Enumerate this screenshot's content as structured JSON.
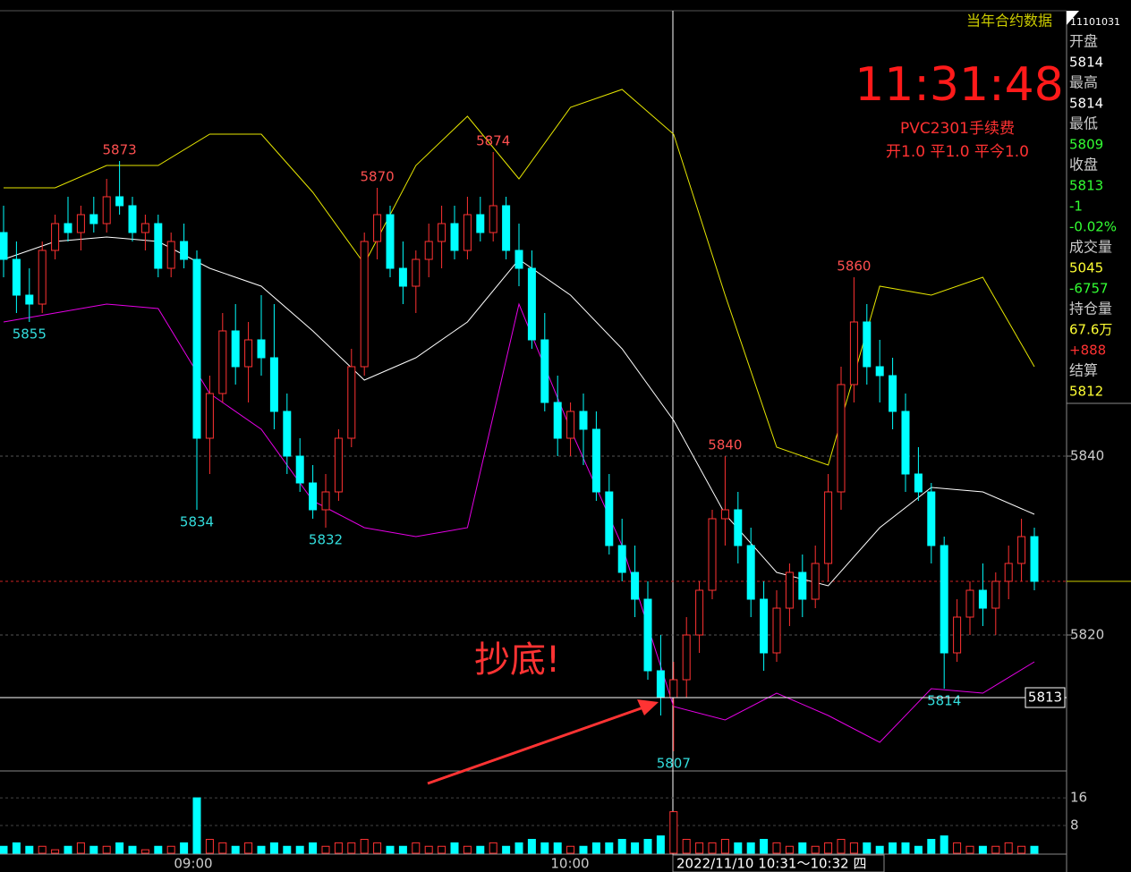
{
  "chart_data": {
    "type": "candlestick",
    "header": "当年合约数据",
    "clock": "11:31:48",
    "contract": "PVC2301手续费",
    "fees": "开1.0 平1.0 平今1.0",
    "annotation": "抄底!",
    "crosshair_time": "2022/11/10 10:31～10:32 四",
    "crosshair_value": 5813,
    "ref_line": 5826,
    "x_labels": [
      "09:00",
      "10:00"
    ],
    "up_color": "#ff3232",
    "down_color": "#00ffff",
    "ylim": [
      5804.8,
      5889.8
    ],
    "yticks": [
      5820,
      5840
    ],
    "volume_ylim": [
      0,
      23
    ],
    "volume_yticks": [
      8,
      16
    ],
    "ohlc": [
      [
        5865,
        5868,
        5860,
        5862
      ],
      [
        5862,
        5864,
        5856,
        5858
      ],
      [
        5858,
        5861,
        5855,
        5857
      ],
      [
        5857,
        5864,
        5856,
        5863
      ],
      [
        5863,
        5867,
        5862,
        5866
      ],
      [
        5866,
        5869,
        5864,
        5865
      ],
      [
        5865,
        5868,
        5863,
        5867
      ],
      [
        5867,
        5869,
        5865,
        5866
      ],
      [
        5866,
        5871,
        5865,
        5869
      ],
      [
        5869,
        5873,
        5867,
        5868
      ],
      [
        5868,
        5869,
        5864,
        5865
      ],
      [
        5865,
        5867,
        5863,
        5866
      ],
      [
        5866,
        5867,
        5860,
        5861
      ],
      [
        5861,
        5865,
        5860,
        5864
      ],
      [
        5864,
        5866,
        5861,
        5862
      ],
      [
        5862,
        5863,
        5834,
        5842
      ],
      [
        5842,
        5849,
        5838,
        5847
      ],
      [
        5847,
        5856,
        5846,
        5854
      ],
      [
        5854,
        5857,
        5848,
        5850
      ],
      [
        5850,
        5855,
        5846,
        5853
      ],
      [
        5853,
        5858,
        5849,
        5851
      ],
      [
        5851,
        5857,
        5843,
        5845
      ],
      [
        5845,
        5847,
        5838,
        5840
      ],
      [
        5840,
        5842,
        5836,
        5837
      ],
      [
        5837,
        5839,
        5833,
        5834
      ],
      [
        5834,
        5838,
        5832,
        5836
      ],
      [
        5836,
        5843,
        5835,
        5842
      ],
      [
        5842,
        5852,
        5841,
        5850
      ],
      [
        5850,
        5865,
        5849,
        5864
      ],
      [
        5864,
        5870,
        5862,
        5867
      ],
      [
        5867,
        5868,
        5860,
        5861
      ],
      [
        5861,
        5864,
        5857,
        5859
      ],
      [
        5859,
        5863,
        5856,
        5862
      ],
      [
        5862,
        5866,
        5860,
        5864
      ],
      [
        5864,
        5868,
        5861,
        5866
      ],
      [
        5866,
        5868,
        5862,
        5863
      ],
      [
        5863,
        5869,
        5862,
        5867
      ],
      [
        5867,
        5869,
        5864,
        5865
      ],
      [
        5865,
        5874,
        5864,
        5868
      ],
      [
        5868,
        5869,
        5862,
        5863
      ],
      [
        5863,
        5866,
        5859,
        5861
      ],
      [
        5861,
        5863,
        5852,
        5853
      ],
      [
        5853,
        5856,
        5845,
        5846
      ],
      [
        5846,
        5849,
        5840,
        5842
      ],
      [
        5842,
        5846,
        5840,
        5845
      ],
      [
        5845,
        5847,
        5839,
        5843
      ],
      [
        5843,
        5845,
        5835,
        5836
      ],
      [
        5836,
        5838,
        5829,
        5830
      ],
      [
        5830,
        5833,
        5826,
        5827
      ],
      [
        5827,
        5830,
        5822,
        5824
      ],
      [
        5824,
        5826,
        5815,
        5816
      ],
      [
        5816,
        5820,
        5811,
        5813
      ],
      [
        5813,
        5817,
        5807,
        5815
      ],
      [
        5815,
        5822,
        5813,
        5820
      ],
      [
        5820,
        5826,
        5818,
        5825
      ],
      [
        5825,
        5834,
        5824,
        5833
      ],
      [
        5833,
        5840,
        5830,
        5834
      ],
      [
        5834,
        5836,
        5828,
        5830
      ],
      [
        5830,
        5832,
        5822,
        5824
      ],
      [
        5824,
        5826,
        5816,
        5818
      ],
      [
        5818,
        5825,
        5817,
        5823
      ],
      [
        5823,
        5828,
        5821,
        5827
      ],
      [
        5827,
        5829,
        5822,
        5824
      ],
      [
        5824,
        5830,
        5823,
        5828
      ],
      [
        5828,
        5838,
        5826,
        5836
      ],
      [
        5836,
        5850,
        5834,
        5848
      ],
      [
        5848,
        5860,
        5846,
        5855
      ],
      [
        5855,
        5857,
        5848,
        5850
      ],
      [
        5850,
        5853,
        5846,
        5849
      ],
      [
        5849,
        5851,
        5843,
        5845
      ],
      [
        5845,
        5847,
        5836,
        5838
      ],
      [
        5838,
        5841,
        5835,
        5836
      ],
      [
        5836,
        5837,
        5828,
        5830
      ],
      [
        5830,
        5831,
        5814,
        5818
      ],
      [
        5818,
        5824,
        5817,
        5822
      ],
      [
        5822,
        5826,
        5820,
        5825
      ],
      [
        5825,
        5828,
        5821,
        5823
      ],
      [
        5823,
        5827,
        5820,
        5826
      ],
      [
        5826,
        5830,
        5824,
        5828
      ],
      [
        5828,
        5833,
        5826,
        5831
      ],
      [
        5831,
        5832,
        5825,
        5826
      ]
    ],
    "volume": [
      2,
      3,
      2,
      2,
      1,
      2,
      3,
      2,
      2,
      3,
      2,
      1,
      2,
      2,
      3,
      16,
      4,
      3,
      2,
      3,
      2,
      3,
      2,
      2,
      3,
      2,
      3,
      3,
      4,
      3,
      2,
      2,
      3,
      2,
      2,
      3,
      2,
      2,
      3,
      2,
      3,
      4,
      3,
      3,
      2,
      2,
      3,
      3,
      4,
      3,
      4,
      5,
      12,
      4,
      3,
      3,
      4,
      3,
      3,
      4,
      3,
      2,
      3,
      2,
      3,
      4,
      3,
      3,
      2,
      3,
      3,
      2,
      4,
      5,
      3,
      2,
      2,
      2,
      3,
      2,
      2
    ],
    "bands": {
      "x": [
        0,
        4,
        8,
        12,
        16,
        20,
        24,
        28,
        32,
        36,
        40,
        44,
        48,
        52,
        56,
        60,
        64,
        68,
        72,
        76,
        80
      ],
      "upper": [
        5870,
        5870,
        5872.5,
        5872.5,
        5876,
        5876,
        5869.5,
        5861.5,
        5872.5,
        5878,
        5871,
        5879,
        5881,
        5876,
        5858,
        5841,
        5839,
        5859,
        5858,
        5860,
        5850
      ],
      "middle": [
        5862,
        5864,
        5864.5,
        5864,
        5861,
        5859,
        5854,
        5848.5,
        5851,
        5855,
        5862,
        5858,
        5852,
        5844,
        5833.5,
        5827,
        5825.5,
        5832,
        5836.5,
        5836,
        5833.5
      ],
      "lower": [
        5855,
        5856,
        5857,
        5856.5,
        5847,
        5843,
        5835,
        5832,
        5831,
        5832,
        5857,
        5843,
        5830,
        5812,
        5810.5,
        5813.5,
        5811,
        5808,
        5814,
        5813.5,
        5817
      ],
      "colors": [
        "#e6e600",
        "#ffffff",
        "#e600e6"
      ]
    },
    "high_labels": [
      5873,
      5870,
      5874,
      5840,
      5860
    ],
    "low_labels": [
      5855,
      5834,
      5832,
      5807,
      5814
    ],
    "sidebar": {
      "code": "11101031",
      "rows": [
        {
          "label": "开盘",
          "value": "5814",
          "color": "#ffffff"
        },
        {
          "label": "最高",
          "value": "5814",
          "color": "#ffffff"
        },
        {
          "label": "最低",
          "value": "5809",
          "color": "#33ff33"
        },
        {
          "label": "收盘",
          "value": "5813",
          "color": "#33ff33"
        },
        {
          "value": "-1",
          "color": "#33ff33"
        },
        {
          "value": "-0.02%",
          "color": "#33ff33"
        },
        {
          "label": "成交量",
          "value": "5045",
          "color": "#ffff33"
        },
        {
          "value": "-6757",
          "color": "#33ff33"
        },
        {
          "label": "持仓量",
          "value": "67.6万",
          "color": "#ffff33"
        },
        {
          "value": "+888",
          "color": "#ff3232"
        },
        {
          "label": "结算",
          "value": "5812",
          "color": "#ffff33"
        }
      ]
    }
  }
}
